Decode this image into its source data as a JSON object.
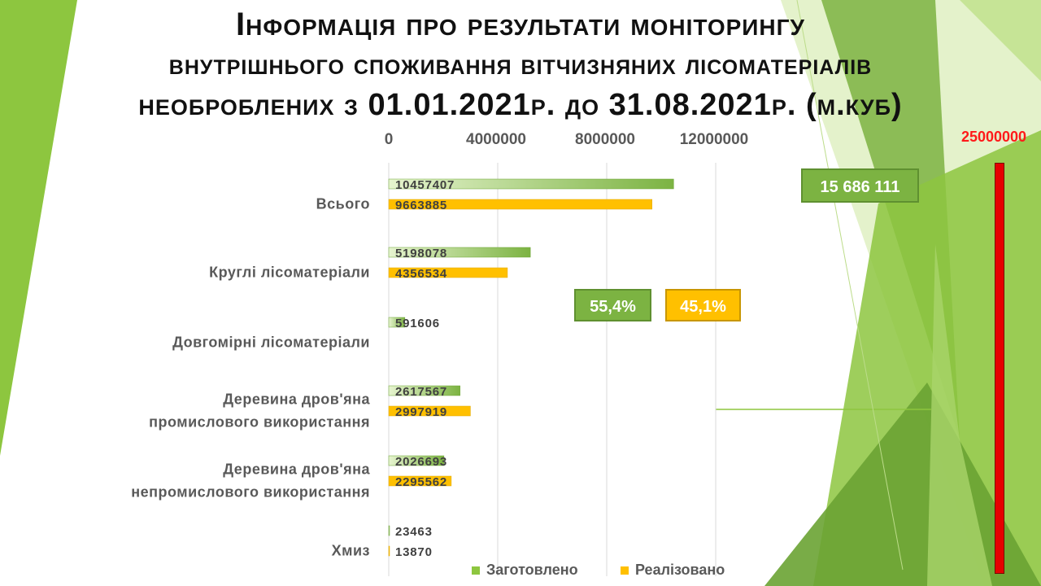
{
  "title": {
    "line1": "Інформація про результати моніторингу",
    "line2": "внутрішнього споживання вітчизняних лісоматеріалів",
    "line3": "необроблених з 01.01.2021р. до 31.08.2021р. (м.куб)"
  },
  "badges": {
    "total": "15 686 111",
    "harvested_pct": "55,4%",
    "sold_pct": "45,1%",
    "max_label": "25000000"
  },
  "colors": {
    "harvested": "#8dc63f",
    "sold": "#ffc000",
    "max_bar": "#e60000",
    "background_accent": "#7cb342"
  },
  "chart_data": {
    "type": "bar",
    "orientation": "horizontal",
    "categories": [
      "Всього",
      "Круглі лісоматеріали",
      "Довгомірні лісоматеріали",
      "Деревина дров'яна промислового використання",
      "Деревина дров'яна непромислового використання",
      "Хмиз"
    ],
    "category_lines": [
      [
        "Всього"
      ],
      [
        "Круглі лісоматеріали"
      ],
      [
        "Довгомірні лісоматеріали"
      ],
      [
        "Деревина дров'яна",
        "промислового використання"
      ],
      [
        "Деревина дров'яна",
        "непромислового використання"
      ],
      [
        "Хмиз"
      ]
    ],
    "series": [
      {
        "name": "Заготовлено",
        "values": [
          10457407,
          5198078,
          591606,
          2617567,
          2026693,
          23463
        ],
        "labels": [
          "10457407",
          "5198078",
          "591606",
          "2617567",
          "2026693",
          "23463"
        ]
      },
      {
        "name": "Реалізовано",
        "values": [
          9663885,
          4356534,
          null,
          2997919,
          2295562,
          13870
        ],
        "labels": [
          "9663885",
          "4356534",
          "",
          "2997919",
          "2295562",
          "13870"
        ]
      }
    ],
    "x_ticks": [
      0,
      4000000,
      8000000,
      12000000
    ],
    "x_tick_labels": [
      "0",
      "4000000",
      "8000000",
      "12000000"
    ],
    "xlim": [
      0,
      12000000
    ],
    "grid": true,
    "legend_position": "bottom"
  }
}
